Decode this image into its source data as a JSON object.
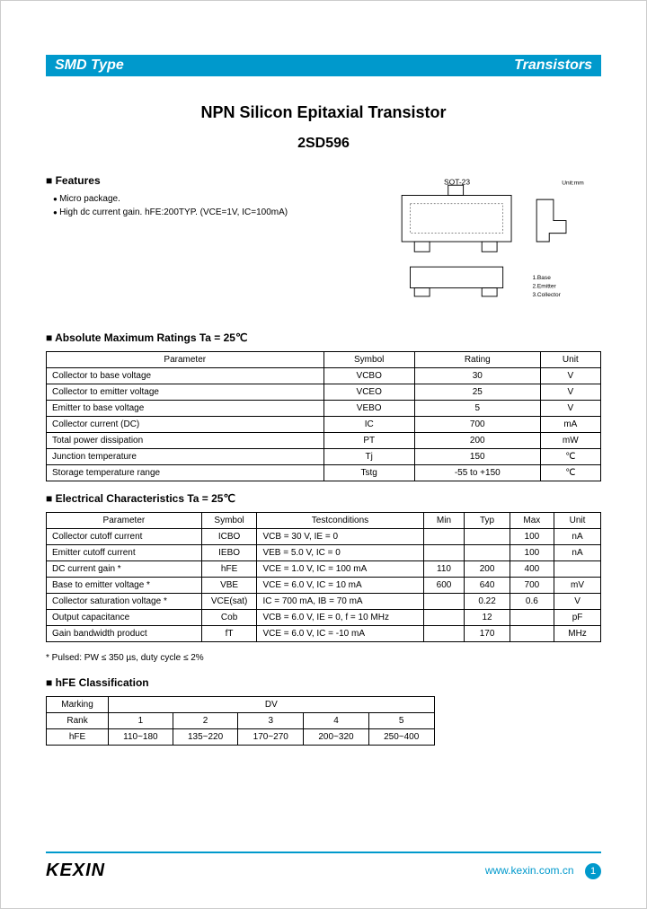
{
  "header": {
    "left": "SMD Type",
    "right": "Transistors"
  },
  "title": "NPN Silicon Epitaxial Transistor",
  "partNumber": "2SD596",
  "features": {
    "header": "Features",
    "items": [
      "Micro package.",
      "High dc current gain. hFE:200TYP. (VCE=1V, IC=100mA)"
    ]
  },
  "packageLabel": "SOT-23",
  "unitLabel": "Unit:mm",
  "pinLabels": [
    "1.Base",
    "2.Emitter",
    "3.Collector"
  ],
  "absMax": {
    "header": "Absolute Maximum Ratings Ta = 25℃",
    "cols": [
      "Parameter",
      "Symbol",
      "Rating",
      "Unit"
    ],
    "rows": [
      [
        "Collector to base voltage",
        "VCBO",
        "30",
        "V"
      ],
      [
        "Collector to emitter voltage",
        "VCEO",
        "25",
        "V"
      ],
      [
        "Emitter to base voltage",
        "VEBO",
        "5",
        "V"
      ],
      [
        "Collector current (DC)",
        "IC",
        "700",
        "mA"
      ],
      [
        "Total power dissipation",
        "PT",
        "200",
        "mW"
      ],
      [
        "Junction temperature",
        "Tj",
        "150",
        "℃"
      ],
      [
        "Storage temperature range",
        "Tstg",
        "-55 to +150",
        "℃"
      ]
    ]
  },
  "elec": {
    "header": "Electrical Characteristics Ta = 25℃",
    "cols": [
      "Parameter",
      "Symbol",
      "Testconditions",
      "Min",
      "Typ",
      "Max",
      "Unit"
    ],
    "rows": [
      [
        "Collector cutoff current",
        "ICBO",
        "VCB = 30 V, IE = 0",
        "",
        "",
        "100",
        "nA"
      ],
      [
        "Emitter cutoff current",
        "IEBO",
        "VEB = 5.0 V, IC = 0",
        "",
        "",
        "100",
        "nA"
      ],
      [
        "DC current gain *",
        "hFE",
        "VCE = 1.0 V, IC = 100 mA",
        "110",
        "200",
        "400",
        ""
      ],
      [
        "Base to emitter voltage *",
        "VBE",
        "VCE = 6.0 V, IC = 10 mA",
        "600",
        "640",
        "700",
        "mV"
      ],
      [
        "Collector saturation voltage *",
        "VCE(sat)",
        "IC = 700 mA, IB = 70 mA",
        "",
        "0.22",
        "0.6",
        "V"
      ],
      [
        "Output capacitance",
        "Cob",
        "VCB = 6.0 V, IE = 0, f = 10 MHz",
        "",
        "12",
        "",
        "pF"
      ],
      [
        "Gain bandwidth product",
        "fT",
        "VCE = 6.0 V, IC = -10 mA",
        "",
        "170",
        "",
        "MHz"
      ]
    ],
    "note": "* Pulsed: PW ≤ 350 µs, duty cycle ≤ 2%"
  },
  "hfe": {
    "header": "hFE Classification",
    "marking": "Marking",
    "dv": "DV",
    "rank": "Rank",
    "ranks": [
      "1",
      "2",
      "3",
      "4",
      "5"
    ],
    "hfeLabel": "hFE",
    "values": [
      "110~180",
      "135~220",
      "170~270",
      "200~320",
      "250~400"
    ]
  },
  "footer": {
    "logo": "KEXIN",
    "url": "www.kexin.com.cn",
    "page": "1"
  }
}
